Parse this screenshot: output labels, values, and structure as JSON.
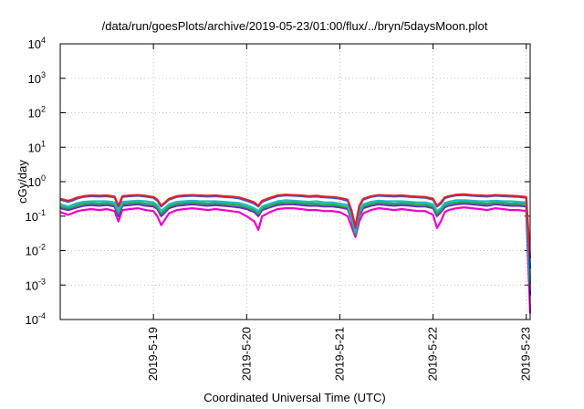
{
  "chart_data": {
    "type": "line",
    "title": "/data/run/goesPlots/archive/2019-05-23/01:00/flux/../bryn/5daysMoon.plot",
    "xlabel": "Coordinated Universal Time (UTC)",
    "ylabel": "cGy/day",
    "yscale": "log",
    "ylim": [
      0.0001,
      10000
    ],
    "xlim": [
      "2019-05-18T00:00",
      "2019-05-23T01:00"
    ],
    "x_ticks": [
      "2019-5-19",
      "2019-5-20",
      "2019-5-21",
      "2019-5-22",
      "2019-5-23"
    ],
    "y_ticks": [
      {
        "base": "10",
        "exp": "-4"
      },
      {
        "base": "10",
        "exp": "-3"
      },
      {
        "base": "10",
        "exp": "-2"
      },
      {
        "base": "10",
        "exp": "-1"
      },
      {
        "base": "10",
        "exp": "0"
      },
      {
        "base": "10",
        "exp": "1"
      },
      {
        "base": "10",
        "exp": "2"
      },
      {
        "base": "10",
        "exp": "3"
      },
      {
        "base": "10",
        "exp": "4"
      }
    ],
    "grid": true,
    "legend": "none",
    "x": [
      "2019-05-18T00:00",
      "2019-05-18T02:00",
      "2019-05-18T03:00",
      "2019-05-18T04:30",
      "2019-05-18T06:00",
      "2019-05-18T08:00",
      "2019-05-18T10:00",
      "2019-05-18T12:00",
      "2019-05-18T14:00",
      "2019-05-18T15:00",
      "2019-05-18T16:00",
      "2019-05-18T18:00",
      "2019-05-18T20:00",
      "2019-05-18T22:00",
      "2019-05-19T00:00",
      "2019-05-19T01:00",
      "2019-05-19T02:00",
      "2019-05-19T04:00",
      "2019-05-19T06:00",
      "2019-05-19T08:00",
      "2019-05-19T10:00",
      "2019-05-19T12:00",
      "2019-05-19T14:00",
      "2019-05-19T16:00",
      "2019-05-19T18:00",
      "2019-05-19T20:00",
      "2019-05-19T22:00",
      "2019-05-20T00:00",
      "2019-05-20T02:00",
      "2019-05-20T03:00",
      "2019-05-20T04:00",
      "2019-05-20T06:00",
      "2019-05-20T08:00",
      "2019-05-20T10:00",
      "2019-05-20T12:00",
      "2019-05-20T14:00",
      "2019-05-20T16:00",
      "2019-05-20T18:00",
      "2019-05-20T20:00",
      "2019-05-20T22:00",
      "2019-05-21T00:00",
      "2019-05-21T02:00",
      "2019-05-21T03:00",
      "2019-05-21T04:00",
      "2019-05-21T05:00",
      "2019-05-21T06:00",
      "2019-05-21T08:00",
      "2019-05-21T10:00",
      "2019-05-21T12:00",
      "2019-05-21T14:00",
      "2019-05-21T16:00",
      "2019-05-21T18:00",
      "2019-05-21T20:00",
      "2019-05-21T22:00",
      "2019-05-22T00:00",
      "2019-05-22T01:00",
      "2019-05-22T02:00",
      "2019-05-22T03:00",
      "2019-05-22T04:00",
      "2019-05-22T06:00",
      "2019-05-22T08:00",
      "2019-05-22T10:00",
      "2019-05-22T12:00",
      "2019-05-22T14:00",
      "2019-05-22T16:00",
      "2019-05-22T18:00",
      "2019-05-22T20:00",
      "2019-05-22T22:00",
      "2019-05-23T00:00",
      "2019-05-23T01:00"
    ],
    "series": [
      {
        "color": "#e0202a",
        "values": [
          0.32,
          0.28,
          0.3,
          0.35,
          0.38,
          0.4,
          0.39,
          0.4,
          0.37,
          0.2,
          0.38,
          0.4,
          0.41,
          0.39,
          0.36,
          0.3,
          0.2,
          0.32,
          0.38,
          0.4,
          0.41,
          0.4,
          0.39,
          0.4,
          0.38,
          0.37,
          0.35,
          0.3,
          0.25,
          0.2,
          0.28,
          0.34,
          0.4,
          0.42,
          0.41,
          0.4,
          0.38,
          0.39,
          0.37,
          0.36,
          0.34,
          0.3,
          0.15,
          0.05,
          0.2,
          0.32,
          0.38,
          0.41,
          0.4,
          0.39,
          0.4,
          0.38,
          0.37,
          0.36,
          0.32,
          0.2,
          0.25,
          0.35,
          0.38,
          0.42,
          0.43,
          0.41,
          0.4,
          0.39,
          0.41,
          0.4,
          0.39,
          0.38,
          0.36,
          0.006
        ]
      },
      {
        "color": "#2060e0",
        "values": [
          0.3,
          0.26,
          0.28,
          0.33,
          0.36,
          0.38,
          0.37,
          0.38,
          0.35,
          0.19,
          0.36,
          0.38,
          0.39,
          0.37,
          0.34,
          0.28,
          0.19,
          0.3,
          0.36,
          0.38,
          0.39,
          0.38,
          0.37,
          0.38,
          0.36,
          0.35,
          0.33,
          0.28,
          0.23,
          0.19,
          0.26,
          0.32,
          0.38,
          0.4,
          0.39,
          0.38,
          0.36,
          0.37,
          0.35,
          0.34,
          0.32,
          0.28,
          0.14,
          0.045,
          0.19,
          0.3,
          0.36,
          0.39,
          0.38,
          0.37,
          0.38,
          0.36,
          0.35,
          0.34,
          0.3,
          0.19,
          0.23,
          0.33,
          0.36,
          0.4,
          0.41,
          0.39,
          0.38,
          0.37,
          0.39,
          0.38,
          0.37,
          0.36,
          0.34,
          0.003
        ]
      },
      {
        "color": "#22b8c8",
        "values": [
          0.22,
          0.19,
          0.21,
          0.24,
          0.26,
          0.27,
          0.27,
          0.27,
          0.25,
          0.14,
          0.26,
          0.27,
          0.28,
          0.27,
          0.25,
          0.21,
          0.14,
          0.22,
          0.26,
          0.27,
          0.28,
          0.27,
          0.27,
          0.27,
          0.26,
          0.25,
          0.24,
          0.21,
          0.17,
          0.14,
          0.19,
          0.23,
          0.27,
          0.29,
          0.28,
          0.27,
          0.26,
          0.27,
          0.25,
          0.25,
          0.23,
          0.21,
          0.1,
          0.035,
          0.14,
          0.22,
          0.26,
          0.28,
          0.27,
          0.27,
          0.27,
          0.26,
          0.25,
          0.25,
          0.22,
          0.14,
          0.17,
          0.24,
          0.26,
          0.29,
          0.29,
          0.28,
          0.27,
          0.27,
          0.28,
          0.27,
          0.27,
          0.26,
          0.25,
          0.0015
        ]
      },
      {
        "color": "#20b040",
        "values": [
          0.19,
          0.17,
          0.18,
          0.21,
          0.23,
          0.24,
          0.23,
          0.24,
          0.22,
          0.12,
          0.23,
          0.24,
          0.25,
          0.23,
          0.22,
          0.18,
          0.12,
          0.19,
          0.23,
          0.24,
          0.25,
          0.24,
          0.23,
          0.24,
          0.23,
          0.22,
          0.21,
          0.18,
          0.15,
          0.12,
          0.17,
          0.2,
          0.24,
          0.25,
          0.25,
          0.24,
          0.23,
          0.23,
          0.22,
          0.22,
          0.2,
          0.18,
          0.09,
          0.03,
          0.12,
          0.19,
          0.23,
          0.25,
          0.24,
          0.23,
          0.24,
          0.23,
          0.22,
          0.22,
          0.19,
          0.12,
          0.15,
          0.21,
          0.23,
          0.25,
          0.26,
          0.25,
          0.24,
          0.23,
          0.25,
          0.24,
          0.23,
          0.23,
          0.22,
          0.001
        ]
      },
      {
        "color": "#6a2fb8",
        "values": [
          0.17,
          0.15,
          0.16,
          0.18,
          0.2,
          0.21,
          0.2,
          0.21,
          0.19,
          0.1,
          0.2,
          0.21,
          0.22,
          0.2,
          0.19,
          0.16,
          0.1,
          0.17,
          0.2,
          0.21,
          0.22,
          0.21,
          0.2,
          0.21,
          0.2,
          0.19,
          0.18,
          0.16,
          0.13,
          0.1,
          0.15,
          0.18,
          0.21,
          0.22,
          0.22,
          0.21,
          0.2,
          0.2,
          0.19,
          0.19,
          0.18,
          0.16,
          0.08,
          0.028,
          0.1,
          0.17,
          0.2,
          0.22,
          0.21,
          0.2,
          0.21,
          0.2,
          0.19,
          0.19,
          0.17,
          0.1,
          0.13,
          0.18,
          0.2,
          0.22,
          0.23,
          0.22,
          0.21,
          0.2,
          0.22,
          0.21,
          0.2,
          0.2,
          0.19,
          0.0005
        ]
      },
      {
        "color": "#f000c8",
        "values": [
          0.13,
          0.11,
          0.12,
          0.14,
          0.15,
          0.16,
          0.15,
          0.16,
          0.14,
          0.07,
          0.15,
          0.16,
          0.17,
          0.15,
          0.14,
          0.1,
          0.055,
          0.12,
          0.15,
          0.16,
          0.17,
          0.16,
          0.15,
          0.16,
          0.15,
          0.14,
          0.13,
          0.1,
          0.07,
          0.04,
          0.1,
          0.13,
          0.16,
          0.17,
          0.17,
          0.16,
          0.15,
          0.15,
          0.14,
          0.14,
          0.13,
          0.1,
          0.05,
          0.025,
          0.07,
          0.12,
          0.15,
          0.17,
          0.16,
          0.15,
          0.16,
          0.15,
          0.14,
          0.14,
          0.11,
          0.045,
          0.07,
          0.13,
          0.15,
          0.17,
          0.18,
          0.17,
          0.16,
          0.15,
          0.17,
          0.16,
          0.15,
          0.15,
          0.14,
          0.00015
        ]
      }
    ]
  }
}
